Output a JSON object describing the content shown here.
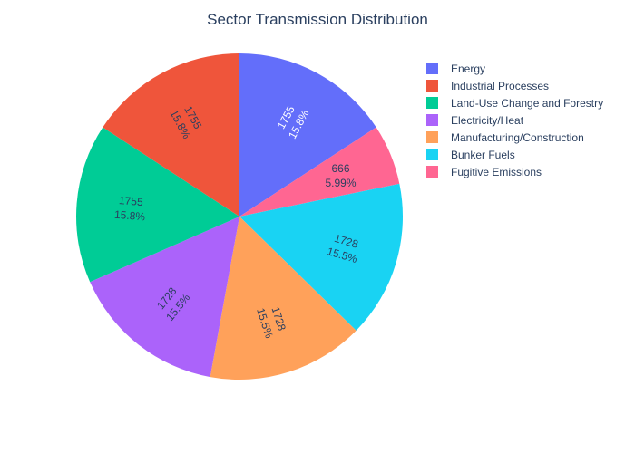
{
  "chart_data": {
    "type": "pie",
    "title": "Sector Transmission Distribution",
    "slices": [
      {
        "label": "Energy",
        "value": 1755,
        "percent": "15.8%",
        "color": "#636efa",
        "text_color": "#ffffff"
      },
      {
        "label": "Fugitive Emissions",
        "value": 666,
        "percent": "5.99%",
        "color": "#ff6692",
        "text_color": "#2a3f5f"
      },
      {
        "label": "Bunker Fuels",
        "value": 1728,
        "percent": "15.5%",
        "color": "#19d3f3",
        "text_color": "#2a3f5f"
      },
      {
        "label": "Manufacturing/Construction",
        "value": 1728,
        "percent": "15.5%",
        "color": "#ffa15a",
        "text_color": "#2a3f5f"
      },
      {
        "label": "Electricity/Heat",
        "value": 1728,
        "percent": "15.5%",
        "color": "#ab63fa",
        "text_color": "#2a3f5f"
      },
      {
        "label": "Land-Use Change and Forestry",
        "value": 1755,
        "percent": "15.8%",
        "color": "#00cc96",
        "text_color": "#2a3f5f"
      },
      {
        "label": "Industrial Processes",
        "value": 1755,
        "percent": "15.8%",
        "color": "#ef553b",
        "text_color": "#2a3f5f"
      }
    ],
    "legend": {
      "placement": "top-right",
      "items": [
        {
          "label": "Energy",
          "color": "#636efa"
        },
        {
          "label": "Industrial Processes",
          "color": "#ef553b"
        },
        {
          "label": "Land-Use Change and Forestry",
          "color": "#00cc96"
        },
        {
          "label": "Electricity/Heat",
          "color": "#ab63fa"
        },
        {
          "label": "Manufacturing/Construction",
          "color": "#ffa15a"
        },
        {
          "label": "Bunker Fuels",
          "color": "#19d3f3"
        },
        {
          "label": "Fugitive Emissions",
          "color": "#ff6692"
        }
      ]
    },
    "direction": "clockwise",
    "start": "top"
  }
}
